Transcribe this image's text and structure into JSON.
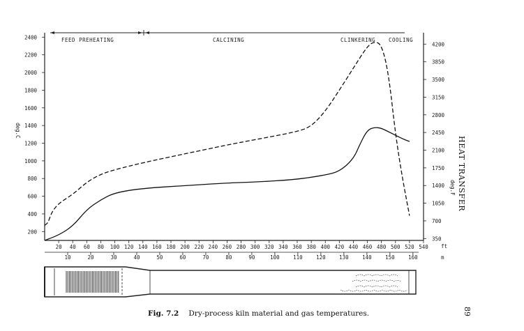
{
  "figure": {
    "caption_label": "Fig. 7.2",
    "caption_text": "Dry-process kiln material and gas temperatures.",
    "running_head": "HEAT TRANSFER",
    "page_number": "89"
  },
  "chart_data": {
    "type": "line",
    "title": "",
    "ylabel": "deg.C",
    "y2label": "deg.F",
    "ylim": [
      100,
      2450
    ],
    "yticks": [
      "200",
      "400",
      "600",
      "800",
      "1000",
      "1200",
      "1400",
      "1600",
      "1800",
      "2000",
      "2200",
      "2400"
    ],
    "y2ticks": [
      "350",
      "700",
      "1050",
      "1400",
      "1750",
      "2100",
      "2450",
      "2800",
      "3150",
      "3500",
      "3850",
      "4200"
    ],
    "xlabel_ft": "ft",
    "xlabel_m": "m",
    "xlim_ft": [
      0,
      540
    ],
    "xticks_ft": [
      "20",
      "40",
      "60",
      "80",
      "100",
      "120",
      "140",
      "160",
      "180",
      "200",
      "220",
      "240",
      "260",
      "280",
      "300",
      "320",
      "340",
      "360",
      "380",
      "400",
      "420",
      "440",
      "460",
      "480",
      "500",
      "520",
      "540"
    ],
    "xticks_m": [
      "10",
      "20",
      "30",
      "40",
      "50",
      "60",
      "70",
      "80",
      "90",
      "100",
      "110",
      "120",
      "130",
      "140",
      "150",
      "160"
    ],
    "zones": [
      {
        "label": "FEED PREHEATING",
        "from_ft": 0,
        "to_ft": 145
      },
      {
        "label": "CALCINING",
        "from_ft": 145,
        "to_ft": 545
      },
      {
        "label": "CLINKERING",
        "from_ft": 0,
        "to_ft": 0
      },
      {
        "label": "COOLING",
        "from_ft": 0,
        "to_ft": 0
      }
    ],
    "series": [
      {
        "style": "dashed",
        "x": [
          0,
          5,
          10,
          20,
          40,
          60,
          80,
          100,
          140,
          200,
          260,
          300,
          360,
          380,
          400,
          420,
          440,
          460,
          470,
          480,
          490,
          500,
          510,
          520
        ],
        "y": [
          270,
          300,
          420,
          520,
          620,
          760,
          850,
          900,
          980,
          1080,
          1180,
          1240,
          1330,
          1390,
          1560,
          1800,
          2050,
          2300,
          2350,
          2320,
          2000,
          1300,
          800,
          380
        ]
      },
      {
        "style": "solid",
        "x": [
          0,
          20,
          40,
          60,
          80,
          100,
          140,
          200,
          260,
          300,
          360,
          400,
          420,
          440,
          450,
          460,
          470,
          480,
          490,
          500,
          510,
          520
        ],
        "y": [
          100,
          160,
          260,
          450,
          560,
          640,
          690,
          720,
          750,
          760,
          790,
          840,
          880,
          1020,
          1200,
          1350,
          1380,
          1370,
          1330,
          1290,
          1250,
          1220
        ]
      }
    ]
  }
}
